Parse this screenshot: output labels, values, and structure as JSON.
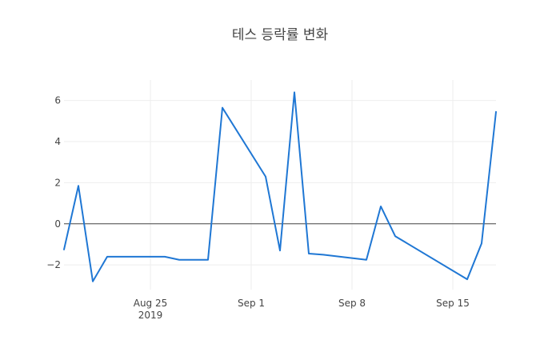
{
  "chart_data": {
    "type": "line",
    "title": "테스 등락률 변화",
    "xlabel": "",
    "ylabel": "",
    "x": [
      "2019-08-19",
      "2019-08-20",
      "2019-08-21",
      "2019-08-22",
      "2019-08-23",
      "2019-08-26",
      "2019-08-27",
      "2019-08-28",
      "2019-08-29",
      "2019-08-30",
      "2019-09-02",
      "2019-09-03",
      "2019-09-04",
      "2019-09-05",
      "2019-09-06",
      "2019-09-09",
      "2019-09-10",
      "2019-09-11",
      "2019-09-16",
      "2019-09-17",
      "2019-09-18"
    ],
    "series": [
      {
        "values": [
          -1.25,
          1.85,
          -2.8,
          -1.6,
          -1.6,
          -1.6,
          -1.75,
          -1.75,
          -1.75,
          5.65,
          2.3,
          -1.3,
          6.4,
          -1.45,
          -1.5,
          -1.75,
          0.85,
          -0.6,
          -2.7,
          -0.95,
          5.45
        ],
        "color": "#1f77d4"
      }
    ],
    "xlim": [
      "2019-08-19",
      "2019-09-18"
    ],
    "ylim": [
      -3.2,
      7.0
    ],
    "yticks": [
      -2,
      0,
      2,
      4,
      6
    ],
    "ytick_labels": [
      "−2",
      "0",
      "2",
      "4",
      "6"
    ],
    "xticks": [
      "2019-08-25",
      "2019-09-01",
      "2019-09-08",
      "2019-09-15"
    ],
    "xtick_labels": [
      "Aug 25",
      "Sep 1",
      "Sep 8",
      "Sep 15"
    ],
    "xtick_year_label": "2019",
    "grid": true,
    "zero_line": true
  }
}
